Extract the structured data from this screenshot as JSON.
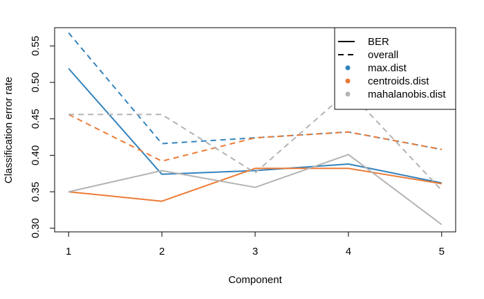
{
  "chart_data": {
    "type": "line",
    "xlabel": "Component",
    "ylabel": "Classification error rate",
    "x": [
      1,
      2,
      3,
      4,
      5
    ],
    "xticks": [
      "1",
      "2",
      "3",
      "4",
      "5"
    ],
    "yticks": [
      "0.30",
      "0.35",
      "0.40",
      "0.45",
      "0.50",
      "0.55"
    ],
    "xlim": [
      0.85,
      5.15
    ],
    "ylim": [
      0.295,
      0.575
    ],
    "grid": false,
    "legend_position": "top-right",
    "legend": [
      {
        "label": "BER",
        "kind": "line",
        "dash": "solid"
      },
      {
        "label": "overall",
        "kind": "line",
        "dash": "dashed"
      },
      {
        "label": "max.dist",
        "kind": "point",
        "color": "#3182bd"
      },
      {
        "label": "centroids.dist",
        "kind": "point",
        "color": "#ec7a35"
      },
      {
        "label": "mahalanobis.dist",
        "kind": "point",
        "color": "#b3b3b3"
      }
    ],
    "series": [
      {
        "name": "max.dist",
        "measure": "BER",
        "color": "#3182bd",
        "dash": "solid",
        "values": [
          0.519,
          0.374,
          0.379,
          0.388,
          0.362
        ]
      },
      {
        "name": "max.dist",
        "measure": "overall",
        "color": "#3182bd",
        "dash": "dashed",
        "values": [
          0.568,
          0.416,
          0.424,
          0.432,
          0.408
        ]
      },
      {
        "name": "centroids.dist",
        "measure": "BER",
        "color": "#ec7a35",
        "dash": "solid",
        "values": [
          0.35,
          0.337,
          0.382,
          0.382,
          0.361
        ]
      },
      {
        "name": "centroids.dist",
        "measure": "overall",
        "color": "#ec7a35",
        "dash": "dashed",
        "values": [
          0.456,
          0.392,
          0.424,
          0.432,
          0.408
        ]
      },
      {
        "name": "mahalanobis.dist",
        "measure": "BER",
        "color": "#b3b3b3",
        "dash": "solid",
        "values": [
          0.35,
          0.379,
          0.356,
          0.401,
          0.305
        ]
      },
      {
        "name": "mahalanobis.dist",
        "measure": "overall",
        "color": "#b3b3b3",
        "dash": "dashed",
        "values": [
          0.456,
          0.456,
          0.376,
          0.488,
          0.352
        ]
      }
    ]
  }
}
